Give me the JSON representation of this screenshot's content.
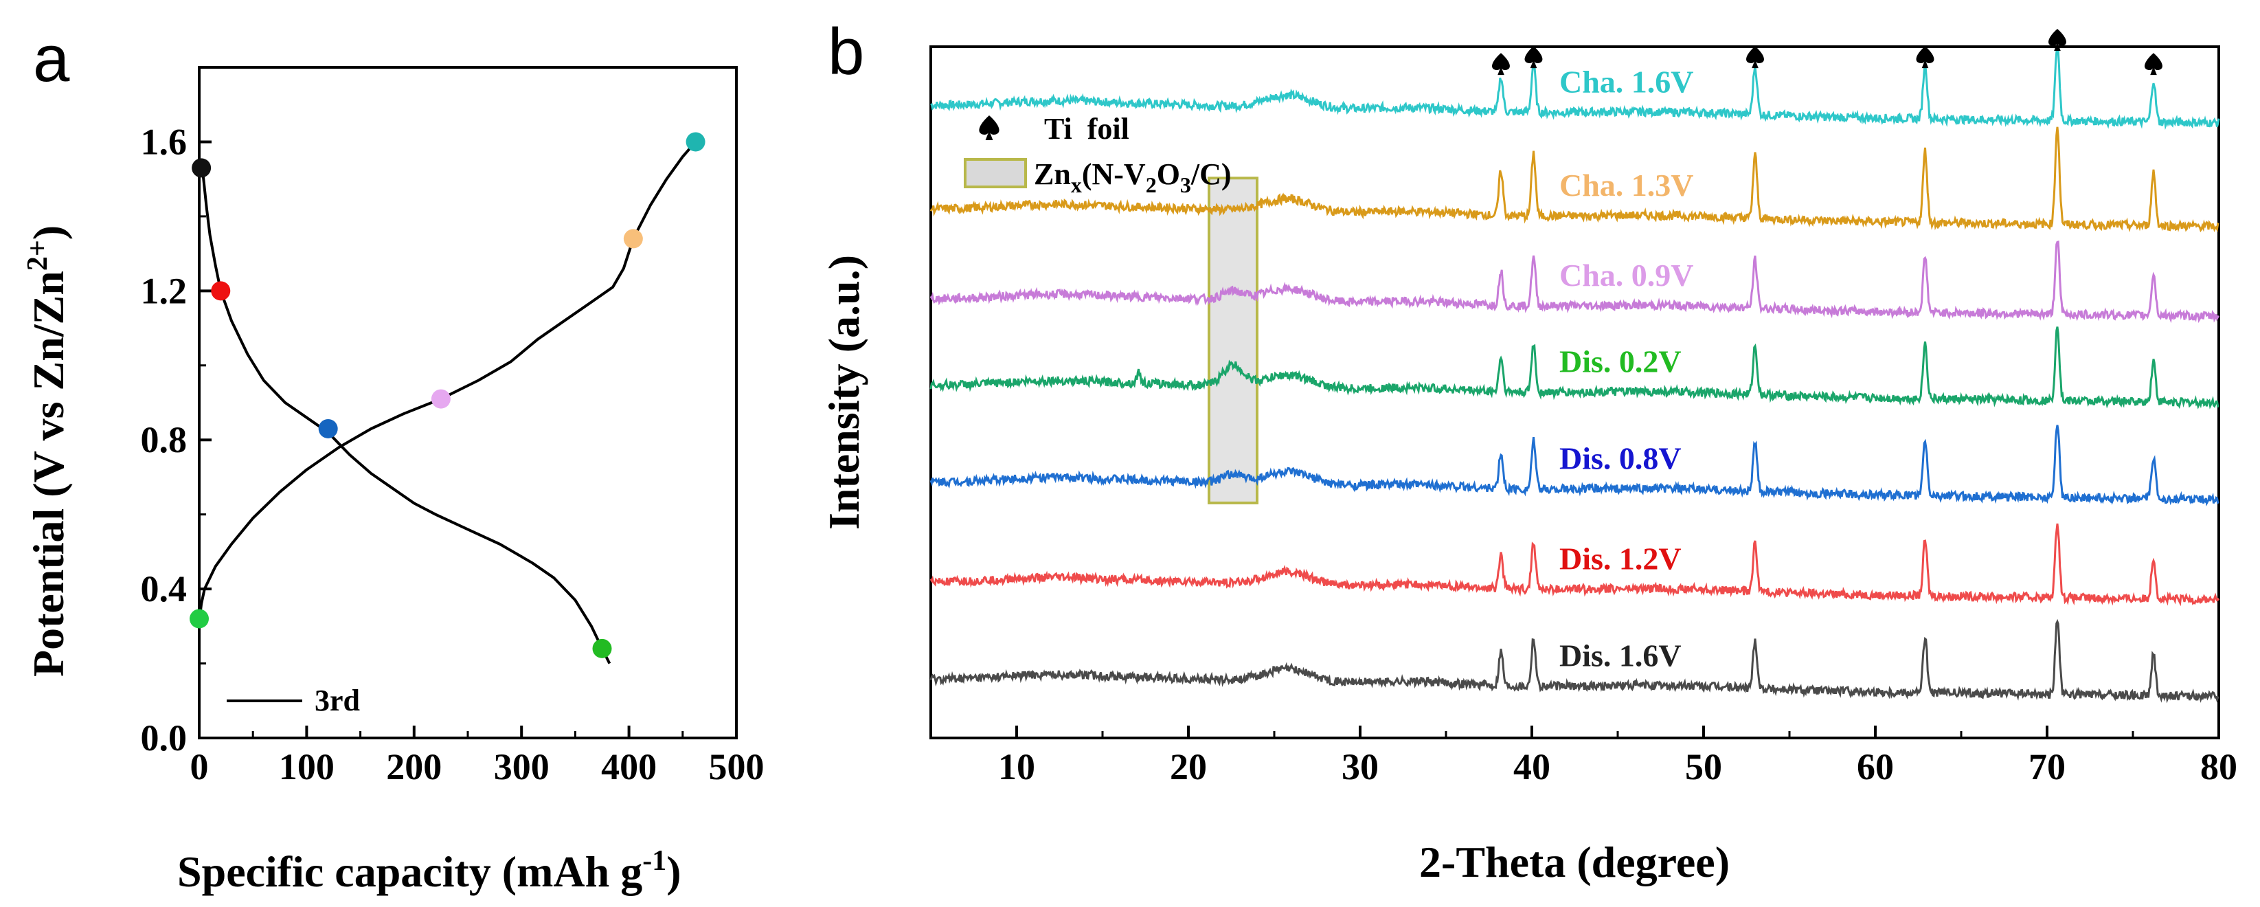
{
  "panel_labels": [
    "a",
    "b"
  ],
  "chart_data": [
    {
      "type": "line",
      "panel": "a",
      "xlabel_main": "Specific capacity (mAh g",
      "xlabel_sup": "-1",
      "xlabel_end": ")",
      "ylabel_main": "Potential (V vs Zn/Zn",
      "ylabel_sup": "2+",
      "ylabel_end": ")",
      "xlim": [
        0,
        500
      ],
      "ylim": [
        0,
        1.8
      ],
      "xticks": [
        0,
        100,
        200,
        300,
        400,
        500
      ],
      "yticks": [
        0.0,
        0.4,
        0.8,
        1.2,
        1.6
      ],
      "xtick_labels": [
        "0",
        "100",
        "200",
        "300",
        "400",
        "500"
      ],
      "ytick_labels": [
        "0.0",
        "0.4",
        "0.8",
        "1.2",
        "1.6"
      ],
      "legend": [
        {
          "label": "3rd",
          "color": "#000000"
        }
      ],
      "series": [
        {
          "name": "discharge",
          "color": "#000000",
          "points": [
            [
              2,
              1.55
            ],
            [
              4,
              1.5
            ],
            [
              7,
              1.42
            ],
            [
              10,
              1.35
            ],
            [
              15,
              1.27
            ],
            [
              20,
              1.2
            ],
            [
              30,
              1.12
            ],
            [
              45,
              1.03
            ],
            [
              60,
              0.96
            ],
            [
              80,
              0.9
            ],
            [
              100,
              0.86
            ],
            [
              120,
              0.82
            ],
            [
              140,
              0.76
            ],
            [
              160,
              0.71
            ],
            [
              180,
              0.67
            ],
            [
              200,
              0.63
            ],
            [
              220,
              0.6
            ],
            [
              250,
              0.56
            ],
            [
              280,
              0.52
            ],
            [
              310,
              0.47
            ],
            [
              330,
              0.43
            ],
            [
              350,
              0.37
            ],
            [
              365,
              0.3
            ],
            [
              375,
              0.24
            ],
            [
              382,
              0.2
            ]
          ]
        },
        {
          "name": "charge",
          "color": "#000000",
          "points": [
            [
              0,
              0.31
            ],
            [
              2,
              0.36
            ],
            [
              5,
              0.4
            ],
            [
              15,
              0.46
            ],
            [
              30,
              0.52
            ],
            [
              50,
              0.59
            ],
            [
              75,
              0.66
            ],
            [
              100,
              0.72
            ],
            [
              130,
              0.78
            ],
            [
              160,
              0.83
            ],
            [
              190,
              0.87
            ],
            [
              225,
              0.91
            ],
            [
              260,
              0.96
            ],
            [
              290,
              1.01
            ],
            [
              315,
              1.07
            ],
            [
              340,
              1.12
            ],
            [
              365,
              1.17
            ],
            [
              385,
              1.21
            ],
            [
              395,
              1.26
            ],
            [
              404,
              1.34
            ],
            [
              420,
              1.43
            ],
            [
              435,
              1.5
            ],
            [
              450,
              1.56
            ],
            [
              462,
              1.6
            ]
          ]
        }
      ],
      "markers": [
        {
          "x": 2,
          "y": 1.53,
          "color": "#111111"
        },
        {
          "x": 20,
          "y": 1.2,
          "color": "#ee1111"
        },
        {
          "x": 120,
          "y": 0.83,
          "color": "#1565c0"
        },
        {
          "x": 225,
          "y": 0.91,
          "color": "#e6a8f0"
        },
        {
          "x": 404,
          "y": 1.34,
          "color": "#f8bf7a"
        },
        {
          "x": 462,
          "y": 1.6,
          "color": "#1fb5b0"
        },
        {
          "x": 375,
          "y": 0.24,
          "color": "#22bb22"
        },
        {
          "x": 0,
          "y": 0.32,
          "color": "#22cc44"
        }
      ]
    },
    {
      "type": "line",
      "panel": "b",
      "xlabel": "2-Theta (degree)",
      "ylabel": "Intensity (a.u.)",
      "xlim": [
        5,
        80
      ],
      "xticks": [
        10,
        20,
        30,
        40,
        50,
        60,
        70,
        80
      ],
      "xtick_labels": [
        "10",
        "20",
        "30",
        "40",
        "50",
        "60",
        "70",
        "80"
      ],
      "legend": [
        {
          "label": "Ti  foil",
          "symbol": "spade"
        },
        {
          "label_main": "Zn",
          "label_sub1": "x",
          "label_mid": "(N-V",
          "label_sub2": "2",
          "label_mid2": "O",
          "label_sub3": "3",
          "label_end": "/C)",
          "symbol": "box"
        }
      ],
      "ti_peaks": [
        38.2,
        40.1,
        53.0,
        62.9,
        70.6,
        76.2
      ],
      "highlight_region": [
        21.2,
        24.0
      ],
      "series": [
        {
          "name": "Cha. 1.6V",
          "color": "#2ec7c9",
          "label_color": "#2ec7c9",
          "baseline": 0.915,
          "slope": 0.06
        },
        {
          "name": "Cha. 1.3V",
          "color": "#d99a1a",
          "label_color": "#f3b56a",
          "baseline": 0.765,
          "slope": 0.07
        },
        {
          "name": "Cha. 0.9V",
          "color": "#c77bd8",
          "label_color": "#dc9ce8",
          "baseline": 0.635,
          "slope": 0.06
        },
        {
          "name": "Dis. 0.2V",
          "color": "#1aa56a",
          "label_color": "#22bb22",
          "baseline": 0.51,
          "slope": 0.06
        },
        {
          "name": "Dis. 0.8V",
          "color": "#1f6fd1",
          "label_color": "#1515d0",
          "baseline": 0.37,
          "slope": 0.06
        },
        {
          "name": "Dis. 1.2V",
          "color": "#ef4b4b",
          "label_color": "#e01010",
          "baseline": 0.225,
          "slope": 0.06
        },
        {
          "name": "Dis. 1.6V",
          "color": "#4a4a4a",
          "label_color": "#222222",
          "baseline": 0.085,
          "slope": 0.06
        }
      ]
    }
  ]
}
